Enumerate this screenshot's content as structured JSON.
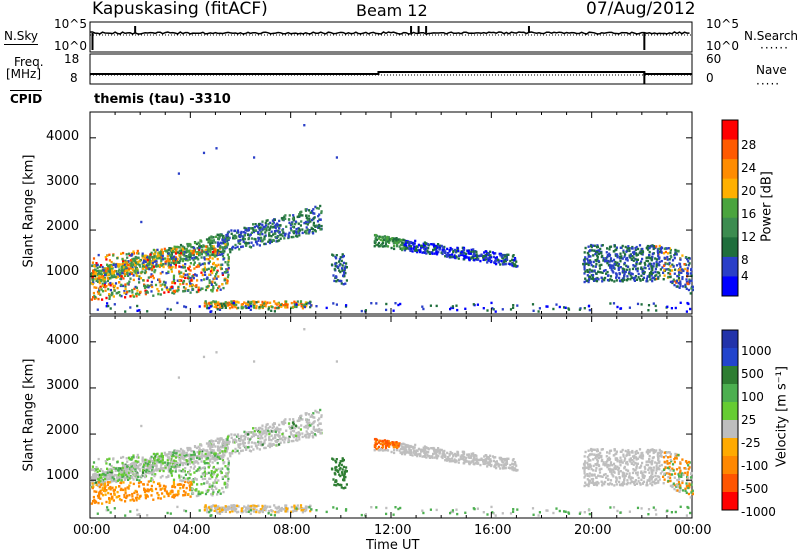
{
  "header": {
    "station": "Kapuskasing (fitACF)",
    "beam": "Beam 12",
    "date": "07/Aug/2012"
  },
  "params": {
    "nsky_label": "N.Sky",
    "nsky_ticks": [
      "10^5",
      "10^0"
    ],
    "nsearch_label": "N.Search",
    "nsearch_ticks": [
      "10^5",
      "10^0"
    ],
    "freq_label": "Freq.",
    "freq_unit": "[MHz]",
    "freq_ticks": [
      "18",
      "8"
    ],
    "nave_label": "Nave",
    "nave_ticks": [
      "60",
      "0"
    ],
    "cpid_label": "CPID",
    "cpid_value": "themis (tau) -3310"
  },
  "colors": {
    "power_scale": [
      "#0000ff",
      "#2a3fc8",
      "#1f6e3c",
      "#3c8c50",
      "#4aa43e",
      "#ffb000",
      "#ff8c00",
      "#ff5a00",
      "#ff0000"
    ],
    "velocity_scale": [
      "#2233aa",
      "#2244cc",
      "#2e7d32",
      "#4caf50",
      "#66cc33",
      "#bebebe",
      "#ffaa00",
      "#ff8800",
      "#ff5500",
      "#ff0000"
    ],
    "ground_scatter": "#bebebe"
  },
  "chart_data": [
    {
      "type": "line",
      "name": "noise-panel",
      "title": "",
      "left_axis": "N.Sky",
      "right_axis": "N.Search",
      "x_range_hours": [
        0,
        24
      ],
      "step_at": 22.1
    },
    {
      "type": "line",
      "name": "freq-nave-panel",
      "left_axis": "Freq. [MHz]",
      "left_range": [
        8,
        18
      ],
      "right_axis": "Nave",
      "right_range": [
        0,
        60
      ],
      "x_range_hours": [
        0,
        24
      ],
      "freq_step_at": 11.5,
      "freq_drop_at": 22.1
    },
    {
      "type": "heatmap",
      "name": "power-panel",
      "ylabel": "Slant Range [km]",
      "ylim": [
        180,
        4560
      ],
      "yticks": [
        1000,
        2000,
        3000,
        4000
      ],
      "x_range_hours": [
        0,
        24
      ],
      "colorbar_label": "Power [dB]",
      "colorbar_ticks": [
        "4",
        "8",
        "12",
        "16",
        "20",
        "24",
        "28"
      ]
    },
    {
      "type": "heatmap",
      "name": "velocity-panel",
      "ylabel": "Slant Range [km]",
      "ylim": [
        180,
        4560
      ],
      "yticks": [
        1000,
        2000,
        3000,
        4000
      ],
      "x_range_hours": [
        0,
        24
      ],
      "xlabel": "Time UT",
      "xticks": [
        "00:00",
        "04:00",
        "08:00",
        "12:00",
        "16:00",
        "20:00",
        "00:00"
      ],
      "colorbar_label": "Velocity [m s⁻¹]",
      "colorbar_ticks": [
        "1000",
        "500",
        "100",
        "25",
        "-25",
        "-100",
        "-500",
        "-1000"
      ]
    }
  ]
}
